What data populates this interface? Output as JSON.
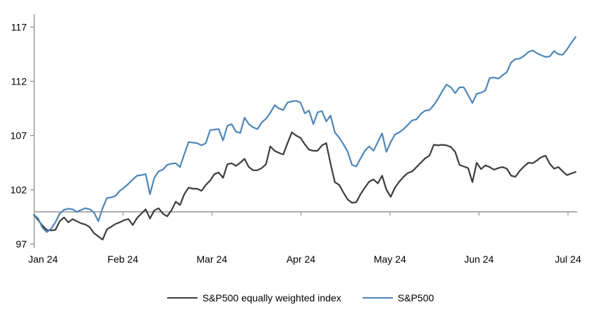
{
  "chart_data": {
    "type": "line",
    "title": "",
    "xlabel": "",
    "ylabel": "",
    "x_tick_labels": [
      "Jan 24",
      "Feb 24",
      "Mar 24",
      "Apr 24",
      "May 24",
      "Jun 24",
      "Jul 24"
    ],
    "y_ticks": [
      97,
      102,
      107,
      112,
      117
    ],
    "ylim": [
      97,
      117
    ],
    "baseline_value": 100,
    "grid": "none",
    "legend_position": "bottom-center",
    "x_unit": "trading days, Jan 2024 through early Jul 2024, uniformly spaced",
    "axis_color": "#8f8f8f",
    "baseline_color": "#9e9e9e",
    "series": [
      {
        "name": "S&P500 equally weighted index",
        "color": "#3d3d3d",
        "values": [
          99.7,
          99.2,
          98.7,
          98.3,
          98.25,
          98.3,
          99.1,
          99.45,
          99.0,
          99.3,
          99.1,
          98.9,
          98.8,
          98.55,
          98.0,
          97.7,
          97.4,
          98.35,
          98.6,
          98.85,
          99.0,
          99.2,
          99.3,
          98.75,
          99.4,
          99.8,
          100.2,
          99.35,
          100.1,
          100.3,
          99.8,
          99.55,
          100.1,
          100.9,
          100.6,
          101.6,
          102.2,
          102.1,
          102.1,
          101.9,
          102.45,
          102.85,
          103.45,
          103.6,
          103.1,
          104.35,
          104.45,
          104.2,
          104.5,
          104.85,
          104.1,
          103.8,
          103.8,
          104.0,
          104.35,
          106.0,
          105.6,
          105.4,
          105.25,
          106.3,
          107.3,
          107.0,
          106.8,
          106.2,
          105.7,
          105.6,
          105.6,
          106.1,
          106.3,
          104.4,
          102.7,
          102.45,
          101.75,
          101.1,
          100.8,
          100.85,
          101.6,
          102.2,
          102.75,
          102.95,
          102.6,
          103.3,
          102.0,
          101.35,
          102.2,
          102.75,
          103.2,
          103.55,
          103.7,
          104.1,
          104.5,
          104.9,
          105.15,
          106.15,
          106.1,
          106.15,
          106.1,
          105.95,
          105.5,
          104.3,
          104.15,
          104.0,
          102.7,
          104.5,
          103.9,
          104.25,
          104.1,
          103.85,
          104.0,
          104.1,
          103.95,
          103.3,
          103.2,
          103.75,
          104.15,
          104.5,
          104.45,
          104.7,
          105.0,
          105.15,
          104.4,
          103.95,
          104.1,
          103.7,
          103.35,
          103.5,
          103.65
        ]
      },
      {
        "name": "S&P500",
        "color": "#4e86b8",
        "values": [
          99.7,
          99.35,
          98.5,
          98.1,
          98.4,
          99.0,
          99.8,
          100.15,
          100.25,
          100.2,
          99.95,
          100.15,
          100.3,
          100.2,
          99.9,
          99.1,
          100.3,
          101.25,
          101.3,
          101.45,
          101.9,
          102.2,
          102.55,
          102.95,
          103.3,
          103.35,
          103.45,
          101.6,
          103.1,
          103.7,
          103.85,
          104.3,
          104.4,
          104.45,
          104.1,
          105.3,
          106.4,
          106.35,
          106.3,
          106.1,
          106.3,
          107.5,
          107.55,
          107.6,
          106.55,
          107.9,
          108.05,
          107.35,
          107.25,
          108.65,
          108.05,
          107.75,
          107.6,
          108.2,
          108.55,
          109.1,
          109.8,
          109.5,
          109.35,
          110.05,
          110.15,
          110.2,
          110.05,
          109.05,
          109.3,
          108.05,
          109.15,
          109.25,
          108.3,
          108.85,
          107.3,
          106.8,
          106.2,
          105.5,
          104.3,
          104.15,
          104.9,
          105.6,
          106.0,
          105.6,
          106.4,
          107.2,
          105.5,
          106.4,
          107.1,
          107.3,
          107.6,
          108.0,
          108.4,
          108.5,
          109.0,
          109.3,
          109.35,
          109.8,
          110.4,
          111.1,
          111.7,
          111.45,
          110.9,
          111.45,
          111.45,
          110.75,
          110.0,
          110.85,
          110.95,
          111.15,
          112.3,
          112.35,
          112.25,
          112.55,
          112.85,
          113.75,
          114.05,
          114.1,
          114.35,
          114.7,
          114.85,
          114.6,
          114.4,
          114.25,
          114.3,
          114.8,
          114.5,
          114.45,
          114.95,
          115.55,
          116.1
        ]
      }
    ]
  }
}
